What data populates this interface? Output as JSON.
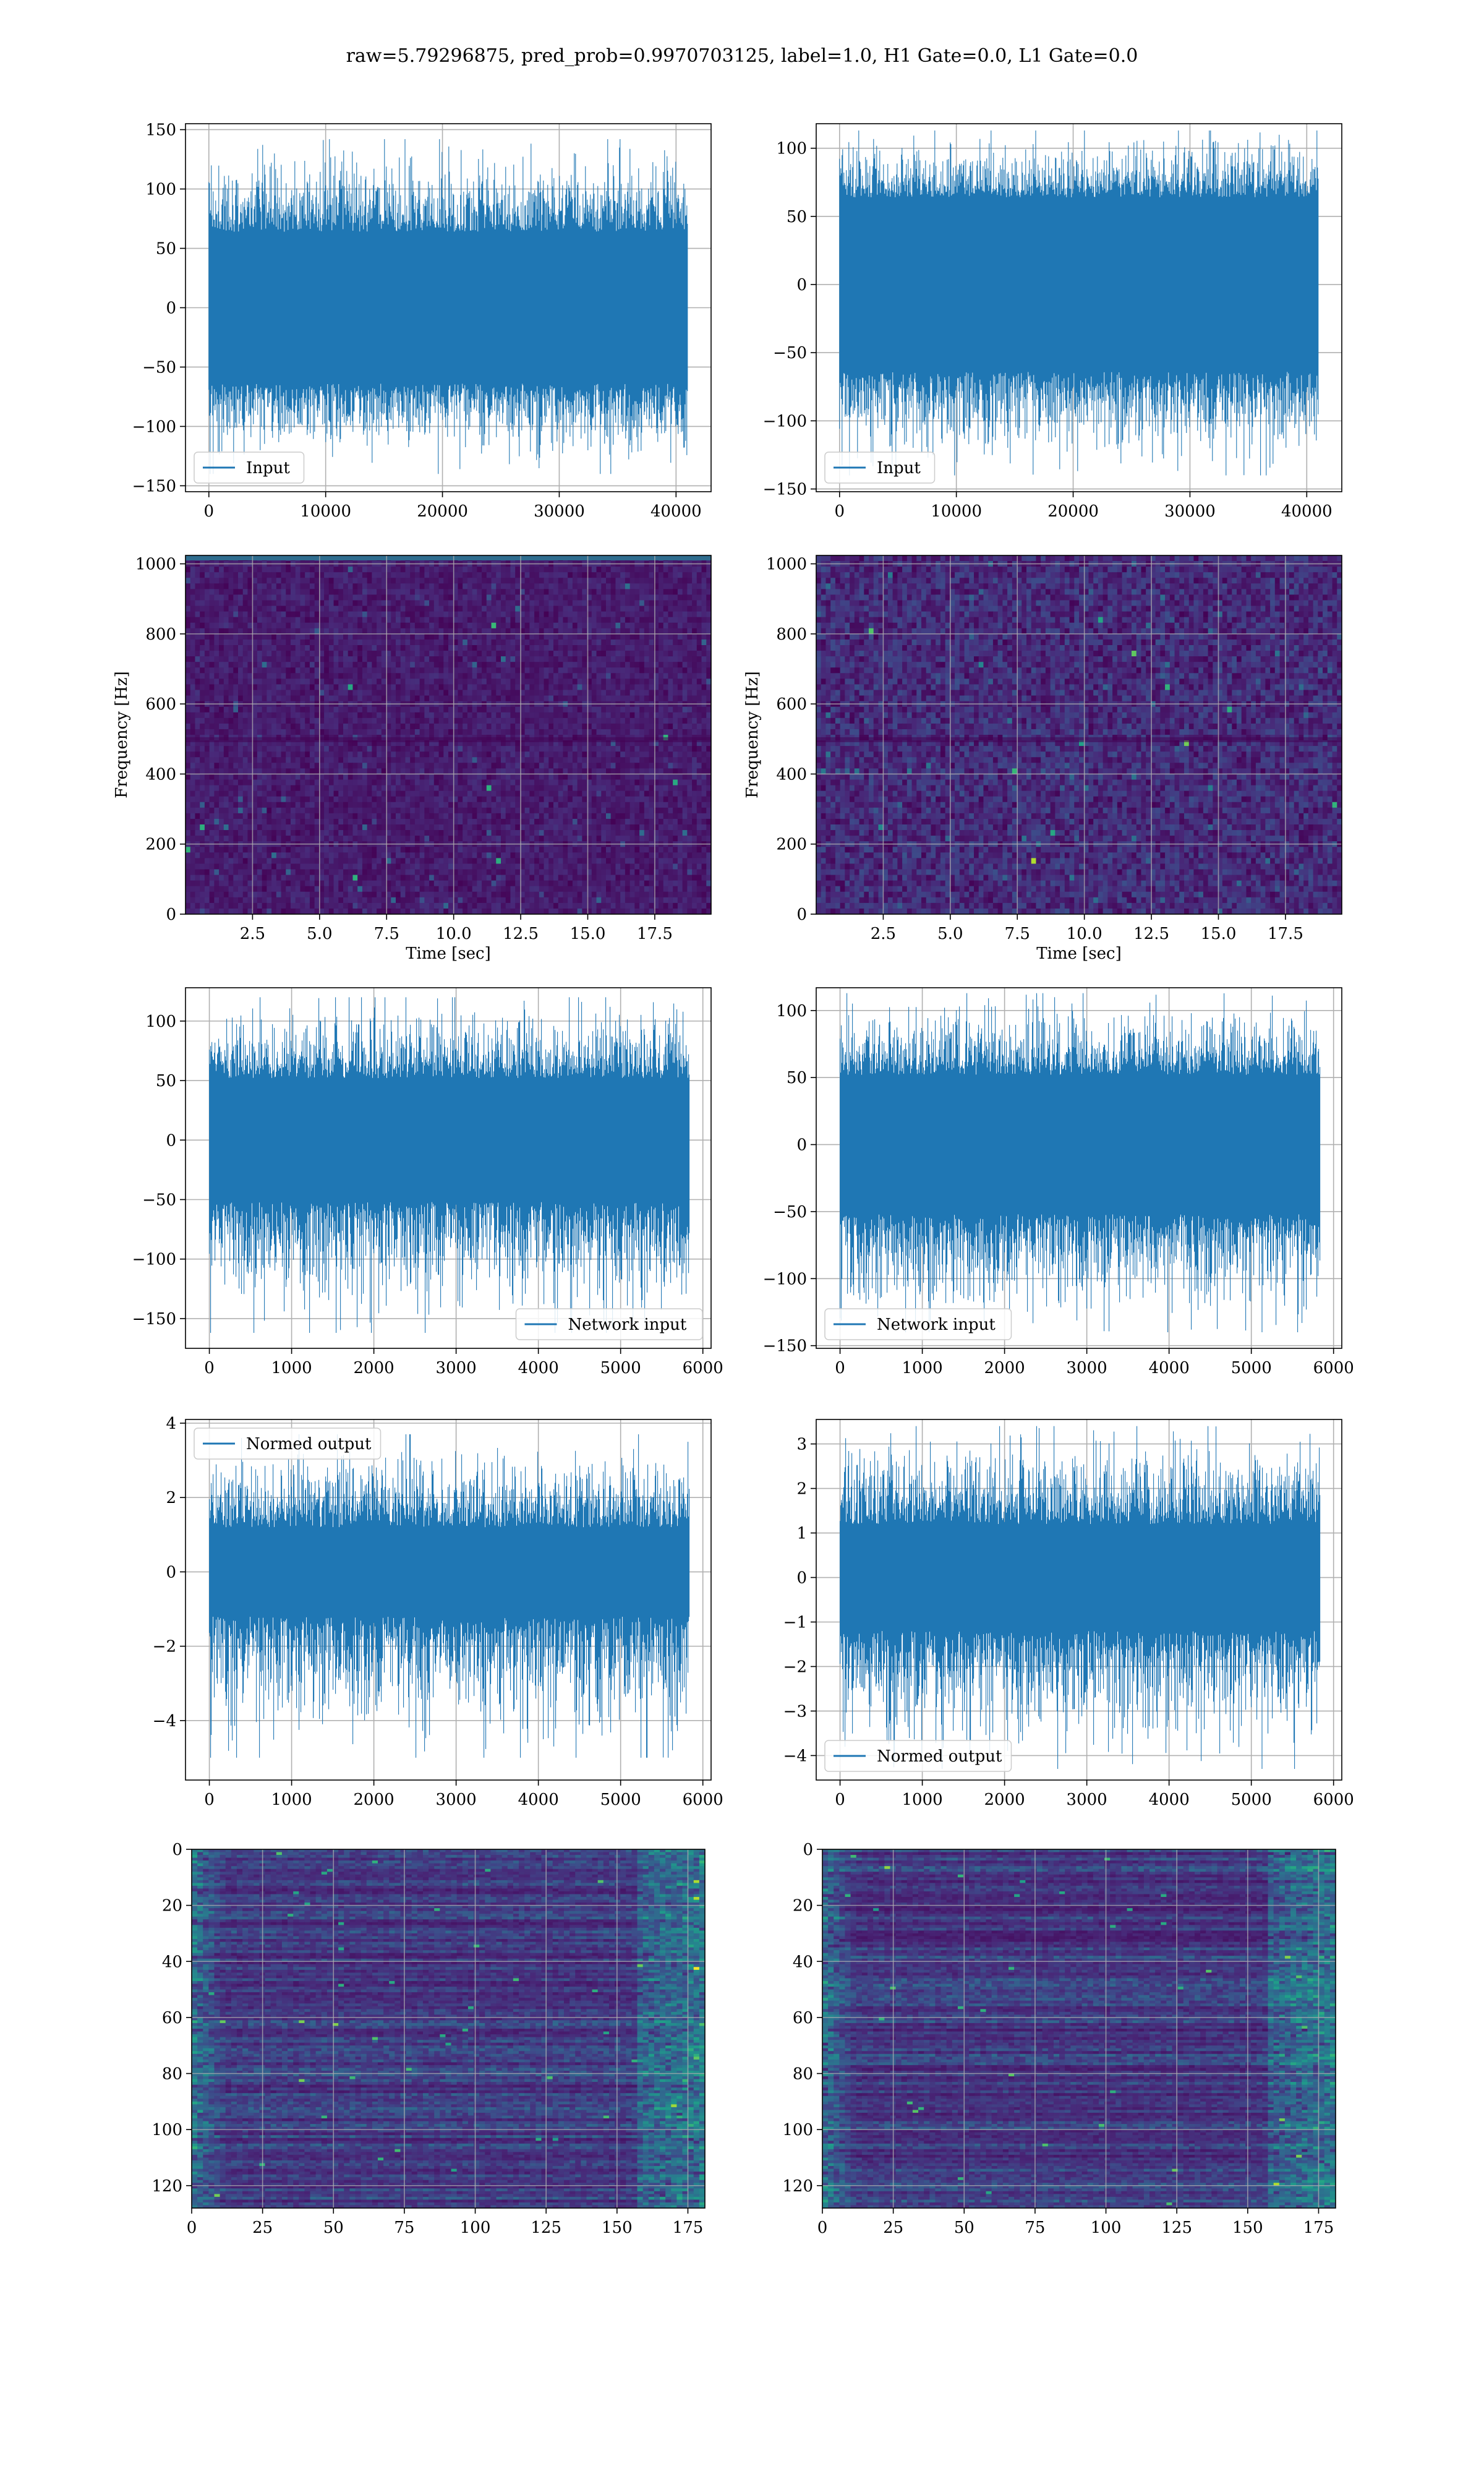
{
  "figure": {
    "title": "raw=5.79296875, pred_prob=0.9970703125, label=1.0, H1 Gate=0.0, L1 Gate=0.0"
  },
  "colors": {
    "line": "#1f77b4",
    "viridis": [
      "#440154",
      "#482878",
      "#3e4989",
      "#31688e",
      "#26828e",
      "#1f9e89",
      "#35b779",
      "#6ece58",
      "#b5de2b",
      "#fde725"
    ],
    "grid": "#b0b0b0"
  },
  "chart_data": [
    {
      "id": "r1c1",
      "type": "line",
      "series": [
        {
          "name": "Input"
        }
      ],
      "legend": "lower left",
      "xlim": [
        -2000,
        43000
      ],
      "ylim": [
        -155,
        155
      ],
      "xticks": [
        0,
        10000,
        20000,
        30000,
        40000
      ],
      "yticks": [
        -150,
        -100,
        -50,
        0,
        50,
        100,
        150
      ],
      "signal": {
        "x_start": 0,
        "x_end": 40960,
        "band": 64,
        "peak_max": 142,
        "peak_min": -140
      },
      "grid": true
    },
    {
      "id": "r1c2",
      "type": "line",
      "series": [
        {
          "name": "Input"
        }
      ],
      "legend": "lower left",
      "xlim": [
        -2000,
        43000
      ],
      "ylim": [
        -152,
        118
      ],
      "xticks": [
        0,
        10000,
        20000,
        30000,
        40000
      ],
      "yticks": [
        -150,
        -100,
        -50,
        0,
        50,
        100
      ],
      "signal": {
        "x_start": 0,
        "x_end": 40960,
        "band": 64,
        "peak_max": 113,
        "peak_min": -140
      },
      "grid": true
    },
    {
      "id": "r2c1",
      "type": "heatmap",
      "xlabel": "Time [sec]",
      "ylabel": "Frequency [Hz]",
      "xlim": [
        0,
        19.6
      ],
      "ylim": [
        0,
        1024
      ],
      "xticks": [
        2.5,
        5.0,
        7.5,
        10.0,
        12.5,
        15.0,
        17.5
      ],
      "yticks": [
        0,
        200,
        400,
        600,
        800,
        1000
      ],
      "grid": true
    },
    {
      "id": "r2c2",
      "type": "heatmap",
      "xlabel": "Time [sec]",
      "ylabel": "Frequency [Hz]",
      "xlim": [
        0,
        19.6
      ],
      "ylim": [
        0,
        1024
      ],
      "xticks": [
        2.5,
        5.0,
        7.5,
        10.0,
        12.5,
        15.0,
        17.5
      ],
      "yticks": [
        0,
        200,
        400,
        600,
        800,
        1000
      ],
      "grid": true
    },
    {
      "id": "r3c1",
      "type": "line",
      "series": [
        {
          "name": "Network input"
        }
      ],
      "legend": "lower right",
      "xlim": [
        -290,
        6100
      ],
      "ylim": [
        -175,
        128
      ],
      "xticks": [
        0,
        1000,
        2000,
        3000,
        4000,
        5000,
        6000
      ],
      "yticks": [
        -150,
        -100,
        -50,
        0,
        50,
        100
      ],
      "signal": {
        "x_start": 0,
        "x_end": 5830,
        "band": 52,
        "peak_max": 120,
        "peak_min": -162
      },
      "grid": true
    },
    {
      "id": "r3c2",
      "type": "line",
      "series": [
        {
          "name": "Network input"
        }
      ],
      "legend": "lower left",
      "xlim": [
        -290,
        6100
      ],
      "ylim": [
        -152,
        117
      ],
      "xticks": [
        0,
        1000,
        2000,
        3000,
        4000,
        5000,
        6000
      ],
      "yticks": [
        -150,
        -100,
        -50,
        0,
        50,
        100
      ],
      "signal": {
        "x_start": 0,
        "x_end": 5830,
        "band": 52,
        "peak_max": 113,
        "peak_min": -140
      },
      "grid": true
    },
    {
      "id": "r4c1",
      "type": "line",
      "series": [
        {
          "name": "Normed output"
        }
      ],
      "legend": "upper left",
      "xlim": [
        -290,
        6100
      ],
      "ylim": [
        -5.6,
        4.1
      ],
      "xticks": [
        0,
        1000,
        2000,
        3000,
        4000,
        5000,
        6000
      ],
      "yticks": [
        -4,
        -2,
        0,
        2,
        4
      ],
      "signal": {
        "x_start": 0,
        "x_end": 5830,
        "band": 1.2,
        "peak_max": 3.7,
        "peak_min": -5.0
      },
      "grid": true
    },
    {
      "id": "r4c2",
      "type": "line",
      "series": [
        {
          "name": "Normed output"
        }
      ],
      "legend": "lower left",
      "xlim": [
        -290,
        6100
      ],
      "ylim": [
        -4.55,
        3.55
      ],
      "xticks": [
        0,
        1000,
        2000,
        3000,
        4000,
        5000,
        6000
      ],
      "yticks": [
        -4,
        -3,
        -2,
        -1,
        0,
        1,
        2,
        3
      ],
      "signal": {
        "x_start": 0,
        "x_end": 5830,
        "band": 1.2,
        "peak_max": 3.4,
        "peak_min": -4.3
      },
      "grid": true
    },
    {
      "id": "r5c1",
      "type": "heatmap",
      "xlim": [
        0,
        181
      ],
      "ylim": [
        128,
        0
      ],
      "inverted_y": true,
      "xticks": [
        0,
        25,
        50,
        75,
        100,
        125,
        150,
        175
      ],
      "yticks": [
        0,
        20,
        40,
        60,
        80,
        100,
        120
      ],
      "grid": true
    },
    {
      "id": "r5c2",
      "type": "heatmap",
      "xlim": [
        0,
        181
      ],
      "ylim": [
        128,
        0
      ],
      "inverted_y": true,
      "xticks": [
        0,
        25,
        50,
        75,
        100,
        125,
        150,
        175
      ],
      "yticks": [
        0,
        20,
        40,
        60,
        80,
        100,
        120
      ],
      "grid": true
    }
  ]
}
